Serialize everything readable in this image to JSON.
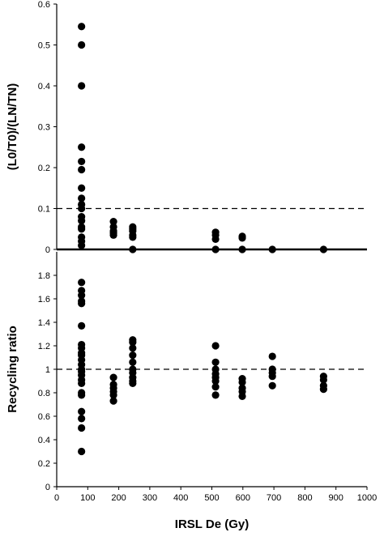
{
  "chart_data": [
    {
      "type": "scatter",
      "ylabel": "(L0/T0)/(LN/TN)",
      "color": "#000000",
      "xlim": [
        0,
        1000
      ],
      "ylim": [
        0,
        0.6
      ],
      "yticks": [
        0,
        0.1,
        0.2,
        0.3,
        0.4,
        0.5,
        0.6
      ],
      "hline": 0.1,
      "x": [
        80,
        80,
        80,
        80,
        80,
        80,
        80,
        80,
        80,
        80,
        80,
        80,
        80,
        80,
        80,
        80,
        80,
        183,
        183,
        183,
        183,
        183,
        245,
        245,
        245,
        245,
        245,
        245,
        512,
        512,
        512,
        512,
        598,
        598,
        598,
        695,
        860
      ],
      "y": [
        0.545,
        0.5,
        0.4,
        0.25,
        0.215,
        0.195,
        0.15,
        0.125,
        0.11,
        0.1,
        0.08,
        0.07,
        0.055,
        0.05,
        0.03,
        0.02,
        0.01,
        0.068,
        0.055,
        0.045,
        0.04,
        0.035,
        0.055,
        0.05,
        0.045,
        0.035,
        0.03,
        0,
        0.042,
        0.035,
        0.025,
        0,
        0.032,
        0.028,
        0,
        0,
        0
      ]
    },
    {
      "type": "scatter",
      "ylabel": "Recycling ratio",
      "xlabel": "IRSL De (Gy)",
      "color": "#000000",
      "xlim": [
        0,
        1000
      ],
      "xticks": [
        0,
        100,
        200,
        300,
        400,
        500,
        600,
        700,
        800,
        900,
        1000
      ],
      "ylim": [
        0,
        2
      ],
      "yticks": [
        0,
        0.2,
        0.4,
        0.6,
        0.8,
        1,
        1.2,
        1.4,
        1.6,
        1.8
      ],
      "hline": 1,
      "x": [
        80,
        80,
        80,
        80,
        80,
        80,
        80,
        80,
        80,
        80,
        80,
        80,
        80,
        80,
        80,
        80,
        80,
        80,
        80,
        80,
        80,
        80,
        80,
        183,
        183,
        183,
        183,
        183,
        183,
        245,
        245,
        245,
        245,
        245,
        245,
        245,
        245,
        245,
        245,
        512,
        512,
        512,
        512,
        512,
        512,
        512,
        512,
        598,
        598,
        598,
        598,
        598,
        695,
        695,
        695,
        695,
        695,
        860,
        860,
        860,
        860
      ],
      "y": [
        1.74,
        1.67,
        1.63,
        1.58,
        1.56,
        1.37,
        1.21,
        1.18,
        1.14,
        1.12,
        1.08,
        1.04,
        1.0,
        0.98,
        0.95,
        0.91,
        0.88,
        0.8,
        0.78,
        0.64,
        0.58,
        0.5,
        0.3,
        0.93,
        0.87,
        0.84,
        0.81,
        0.78,
        0.73,
        1.25,
        1.23,
        1.18,
        1.12,
        1.06,
        1.0,
        0.97,
        0.93,
        0.9,
        0.88,
        1.2,
        1.06,
        1.0,
        0.96,
        0.93,
        0.9,
        0.85,
        0.78,
        0.92,
        0.89,
        0.84,
        0.81,
        0.77,
        1.11,
        1.0,
        0.97,
        0.94,
        0.86,
        0.94,
        0.91,
        0.86,
        0.83
      ]
    }
  ]
}
